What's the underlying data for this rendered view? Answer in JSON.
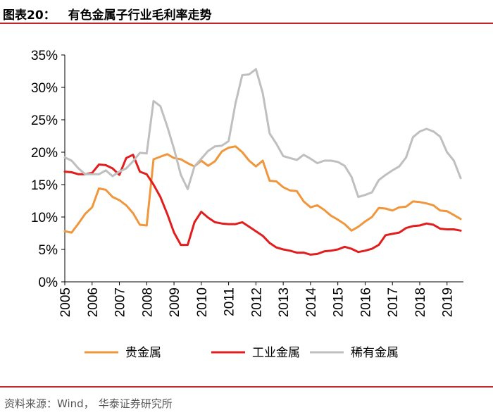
{
  "header": {
    "figure_no": "图表20：",
    "title": "有色金属子行业毛利率走势"
  },
  "footer": {
    "source_label": "资料来源：Wind，",
    "source_org": "华泰证券研究所"
  },
  "chart_data": {
    "type": "line",
    "title": "有色金属子行业毛利率走势",
    "xlabel": "",
    "ylabel": "",
    "xlim": [
      2005,
      2019.6
    ],
    "ylim": [
      0,
      35
    ],
    "y_ticks": [
      0,
      5,
      10,
      15,
      20,
      25,
      30,
      35
    ],
    "y_tick_labels": [
      "0%",
      "5%",
      "10%",
      "15%",
      "20%",
      "25%",
      "30%",
      "35%"
    ],
    "x_ticks": [
      2005,
      2006,
      2007,
      2008,
      2009,
      2010,
      2011,
      2012,
      2013,
      2014,
      2015,
      2016,
      2017,
      2018,
      2019
    ],
    "x_tick_labels": [
      "2005",
      "2006",
      "2007",
      "2008",
      "2009",
      "2010",
      "2011",
      "2012",
      "2013",
      "2014",
      "2015",
      "2016",
      "2017",
      "2018",
      "2019"
    ],
    "legend_position": "bottom",
    "series": [
      {
        "name": "贵金属",
        "color": "#f0963c",
        "x": [
          2005.0,
          2005.25,
          2005.5,
          2005.75,
          2006.0,
          2006.25,
          2006.5,
          2006.75,
          2007.0,
          2007.25,
          2007.5,
          2007.75,
          2008.0,
          2008.25,
          2008.5,
          2008.75,
          2009.0,
          2009.25,
          2009.5,
          2009.75,
          2010.0,
          2010.25,
          2010.5,
          2010.75,
          2011.0,
          2011.25,
          2011.5,
          2011.75,
          2012.0,
          2012.25,
          2012.5,
          2012.75,
          2013.0,
          2013.25,
          2013.5,
          2013.75,
          2014.0,
          2014.25,
          2014.5,
          2014.75,
          2015.0,
          2015.25,
          2015.5,
          2015.75,
          2016.0,
          2016.25,
          2016.5,
          2016.75,
          2017.0,
          2017.25,
          2017.5,
          2017.75,
          2018.0,
          2018.25,
          2018.5,
          2018.75,
          2019.0,
          2019.25,
          2019.5
        ],
        "values": [
          7.8,
          7.6,
          9.0,
          10.5,
          11.5,
          14.4,
          14.2,
          13.1,
          12.6,
          11.8,
          10.6,
          8.8,
          8.7,
          18.9,
          19.3,
          19.7,
          19.1,
          18.9,
          18.3,
          17.8,
          18.7,
          17.9,
          18.6,
          20.1,
          20.7,
          20.9,
          20.0,
          18.7,
          17.8,
          18.7,
          15.6,
          15.5,
          14.6,
          14.1,
          14.0,
          12.4,
          11.5,
          11.8,
          11.1,
          10.2,
          9.6,
          8.9,
          7.9,
          8.5,
          9.3,
          10.0,
          11.4,
          11.3,
          11.0,
          11.5,
          11.6,
          12.4,
          12.3,
          12.1,
          11.8,
          11.0,
          10.9,
          10.3,
          9.7
        ]
      },
      {
        "name": "工业金属",
        "color": "#e21d1d",
        "x": [
          2005.0,
          2005.25,
          2005.5,
          2005.75,
          2006.0,
          2006.25,
          2006.5,
          2006.75,
          2007.0,
          2007.25,
          2007.5,
          2007.75,
          2008.0,
          2008.25,
          2008.5,
          2008.75,
          2009.0,
          2009.25,
          2009.5,
          2009.75,
          2010.0,
          2010.25,
          2010.5,
          2010.75,
          2011.0,
          2011.25,
          2011.5,
          2011.75,
          2012.0,
          2012.25,
          2012.5,
          2012.75,
          2013.0,
          2013.25,
          2013.5,
          2013.75,
          2014.0,
          2014.25,
          2014.5,
          2014.75,
          2015.0,
          2015.25,
          2015.5,
          2015.75,
          2016.0,
          2016.25,
          2016.5,
          2016.75,
          2017.0,
          2017.25,
          2017.5,
          2017.75,
          2018.0,
          2018.25,
          2018.5,
          2018.75,
          2019.0,
          2019.25,
          2019.5
        ],
        "values": [
          17.0,
          16.9,
          16.6,
          16.6,
          16.8,
          18.1,
          18.0,
          17.5,
          16.5,
          19.1,
          19.6,
          17.0,
          16.6,
          15.0,
          13.1,
          10.5,
          7.6,
          5.7,
          5.7,
          9.2,
          10.8,
          9.9,
          9.2,
          9.0,
          8.9,
          8.9,
          9.2,
          8.5,
          7.8,
          7.1,
          6.0,
          5.3,
          5.0,
          4.8,
          4.5,
          4.5,
          4.2,
          4.3,
          4.7,
          4.8,
          5.0,
          5.4,
          5.1,
          4.6,
          4.8,
          5.1,
          5.7,
          7.2,
          7.4,
          7.6,
          8.3,
          8.6,
          8.7,
          9.0,
          8.8,
          8.2,
          8.1,
          8.1,
          7.9
        ]
      },
      {
        "name": "稀有金属",
        "color": "#bfbfbf",
        "x": [
          2005.0,
          2005.25,
          2005.5,
          2005.75,
          2006.0,
          2006.25,
          2006.5,
          2006.75,
          2007.0,
          2007.25,
          2007.5,
          2007.75,
          2008.0,
          2008.25,
          2008.5,
          2008.75,
          2009.0,
          2009.25,
          2009.5,
          2009.75,
          2010.0,
          2010.25,
          2010.5,
          2010.75,
          2011.0,
          2011.25,
          2011.5,
          2011.75,
          2012.0,
          2012.25,
          2012.5,
          2012.75,
          2013.0,
          2013.25,
          2013.5,
          2013.75,
          2014.0,
          2014.25,
          2014.5,
          2014.75,
          2015.0,
          2015.25,
          2015.5,
          2015.75,
          2016.0,
          2016.25,
          2016.5,
          2016.75,
          2017.0,
          2017.25,
          2017.5,
          2017.75,
          2018.0,
          2018.25,
          2018.5,
          2018.75,
          2019.0,
          2019.25,
          2019.5
        ],
        "values": [
          19.2,
          18.7,
          17.5,
          16.6,
          16.6,
          16.6,
          17.2,
          16.3,
          17.0,
          17.5,
          18.6,
          19.9,
          19.8,
          27.9,
          27.1,
          24.0,
          20.5,
          16.5,
          14.3,
          17.8,
          19.0,
          20.2,
          20.9,
          21.0,
          21.7,
          27.5,
          31.9,
          32.0,
          32.8,
          29.1,
          22.9,
          21.3,
          19.4,
          19.1,
          18.8,
          19.6,
          19.0,
          18.3,
          18.7,
          18.7,
          18.5,
          17.9,
          16.2,
          13.1,
          13.4,
          13.8,
          15.7,
          16.5,
          17.2,
          17.8,
          19.2,
          22.3,
          23.2,
          23.6,
          23.2,
          22.4,
          20.0,
          18.7,
          16.0
        ]
      }
    ]
  }
}
